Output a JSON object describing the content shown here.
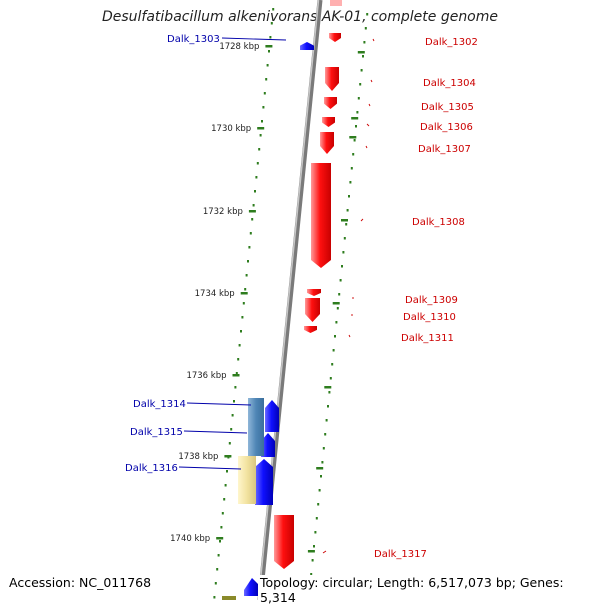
{
  "title": "Desulfatibacillum alkenivorans AK-01, complete genome",
  "accession": "Accession: NC_011768",
  "summary": "Topology: circular; Length: 6,517,073 bp; Genes: 5,314",
  "colors": {
    "forward_gene": "#ff0000",
    "reverse_gene": "#0000ff",
    "forward_label": "#cc0000",
    "reverse_label": "#0000aa",
    "tick": "#2e7d1e",
    "backbone": "#808080",
    "track_steel": "#4f86b6",
    "track_yellow": "#f2e3a0"
  },
  "scale_ticks": [
    {
      "label": "1728 kbp"
    },
    {
      "label": "1730 kbp"
    },
    {
      "label": "1732 kbp"
    },
    {
      "label": "1734 kbp"
    },
    {
      "label": "1736 kbp"
    },
    {
      "label": "1738 kbp"
    },
    {
      "label": "1740 kbp"
    }
  ],
  "genes": [
    {
      "name": "Dalk_1302",
      "strand": "forward"
    },
    {
      "name": "Dalk_1303",
      "strand": "reverse"
    },
    {
      "name": "Dalk_1304",
      "strand": "forward"
    },
    {
      "name": "Dalk_1305",
      "strand": "forward"
    },
    {
      "name": "Dalk_1306",
      "strand": "forward"
    },
    {
      "name": "Dalk_1307",
      "strand": "forward"
    },
    {
      "name": "Dalk_1308",
      "strand": "forward"
    },
    {
      "name": "Dalk_1309",
      "strand": "forward"
    },
    {
      "name": "Dalk_1310",
      "strand": "forward"
    },
    {
      "name": "Dalk_1311",
      "strand": "forward"
    },
    {
      "name": "Dalk_1314",
      "strand": "reverse"
    },
    {
      "name": "Dalk_1315",
      "strand": "reverse"
    },
    {
      "name": "Dalk_1316",
      "strand": "reverse"
    },
    {
      "name": "Dalk_1317",
      "strand": "forward"
    }
  ]
}
